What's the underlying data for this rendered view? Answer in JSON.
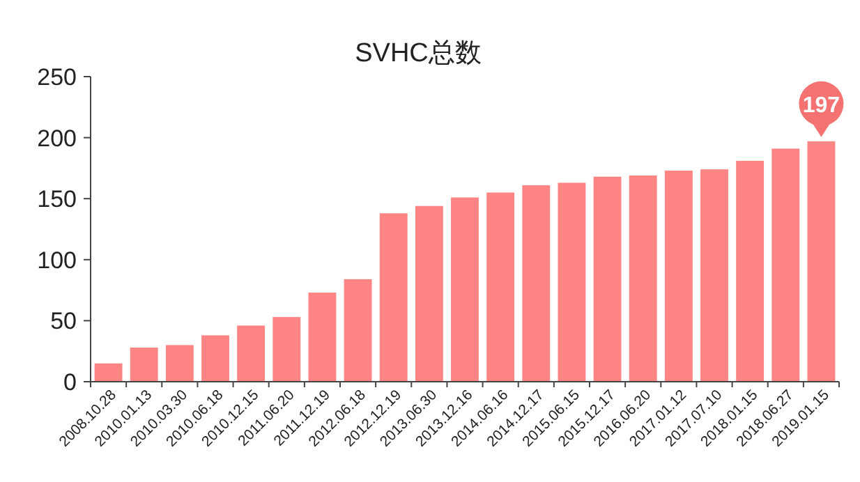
{
  "chart_data": {
    "type": "bar",
    "title": "SVHC总数",
    "categories": [
      "2008.10.28",
      "2010.01.13",
      "2010.03.30",
      "2010.06.18",
      "2010.12.15",
      "2011.06.20",
      "2011.12.19",
      "2012.06.18",
      "2012.12.19",
      "2013.06.30",
      "2013.12.16",
      "2014.06.16",
      "2014.12.17",
      "2015.06.15",
      "2015.12.17",
      "2016.06.20",
      "2017.01.12",
      "2017.07.10",
      "2018.01.15",
      "2018.06.27",
      "2019.01.15"
    ],
    "values": [
      15,
      28,
      30,
      38,
      46,
      53,
      73,
      84,
      138,
      144,
      151,
      155,
      161,
      163,
      168,
      169,
      173,
      174,
      181,
      191,
      197
    ],
    "value_labels": [
      null,
      null,
      null,
      null,
      null,
      null,
      null,
      null,
      null,
      null,
      null,
      null,
      null,
      null,
      null,
      null,
      null,
      null,
      null,
      null,
      "197"
    ],
    "color": "#ff8585",
    "ylim": [
      0,
      250
    ],
    "yticks": [
      0,
      50,
      100,
      150,
      200,
      250
    ]
  }
}
